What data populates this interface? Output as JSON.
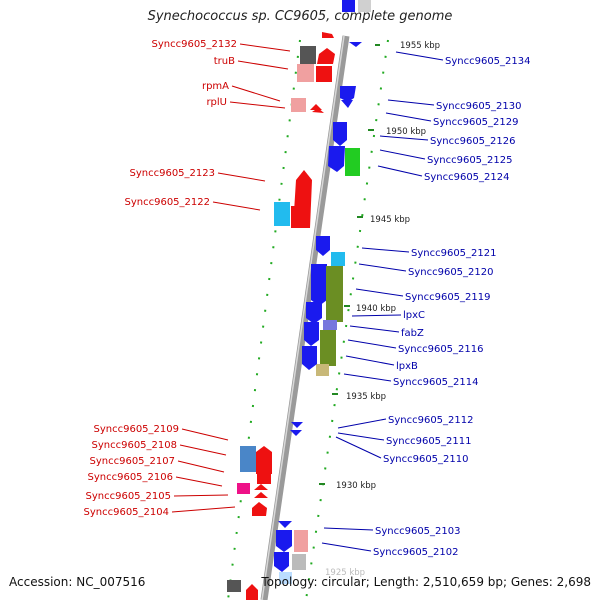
{
  "title": "Synechococcus sp. CC9605, complete genome",
  "accession": "Accession: NC_007516",
  "topology": "Topology: circular; Length: 2,510,659 bp; Genes: 2,698",
  "ticks": [
    "1955 kbp",
    "1950 kbp",
    "1945 kbp",
    "1940 kbp",
    "1935 kbp",
    "1930 kbp",
    "1925 kbp"
  ],
  "left_labels": [
    "Syncc9605_2132",
    "truB",
    "rpmA",
    "rplU",
    "Syncc9605_2123",
    "Syncc9605_2122",
    "Syncc9605_2109",
    "Syncc9605_2108",
    "Syncc9605_2107",
    "Syncc9605_2106",
    "Syncc9605_2105",
    "Syncc9605_2104"
  ],
  "right_labels": [
    "Syncc9605_2134",
    "Syncc9605_2130",
    "Syncc9605_2129",
    "Syncc9605_2126",
    "Syncc9605_2125",
    "Syncc9605_2124",
    "Syncc9605_2121",
    "Syncc9605_2120",
    "Syncc9605_2119",
    "lpxC",
    "fabZ",
    "Syncc9605_2116",
    "lpxB",
    "Syncc9605_2114",
    "Syncc9605_2112",
    "Syncc9605_2111",
    "Syncc9605_2110",
    "Syncc9605_2103",
    "Syncc9605_2102"
  ],
  "colors": {
    "reverse_strand": "#ee1111",
    "forward_strand": "#1a1aee",
    "left_label": "#cc0000",
    "right_label": "#0000aa",
    "backbone": "#8a8a8a",
    "tick": "#228822"
  }
}
